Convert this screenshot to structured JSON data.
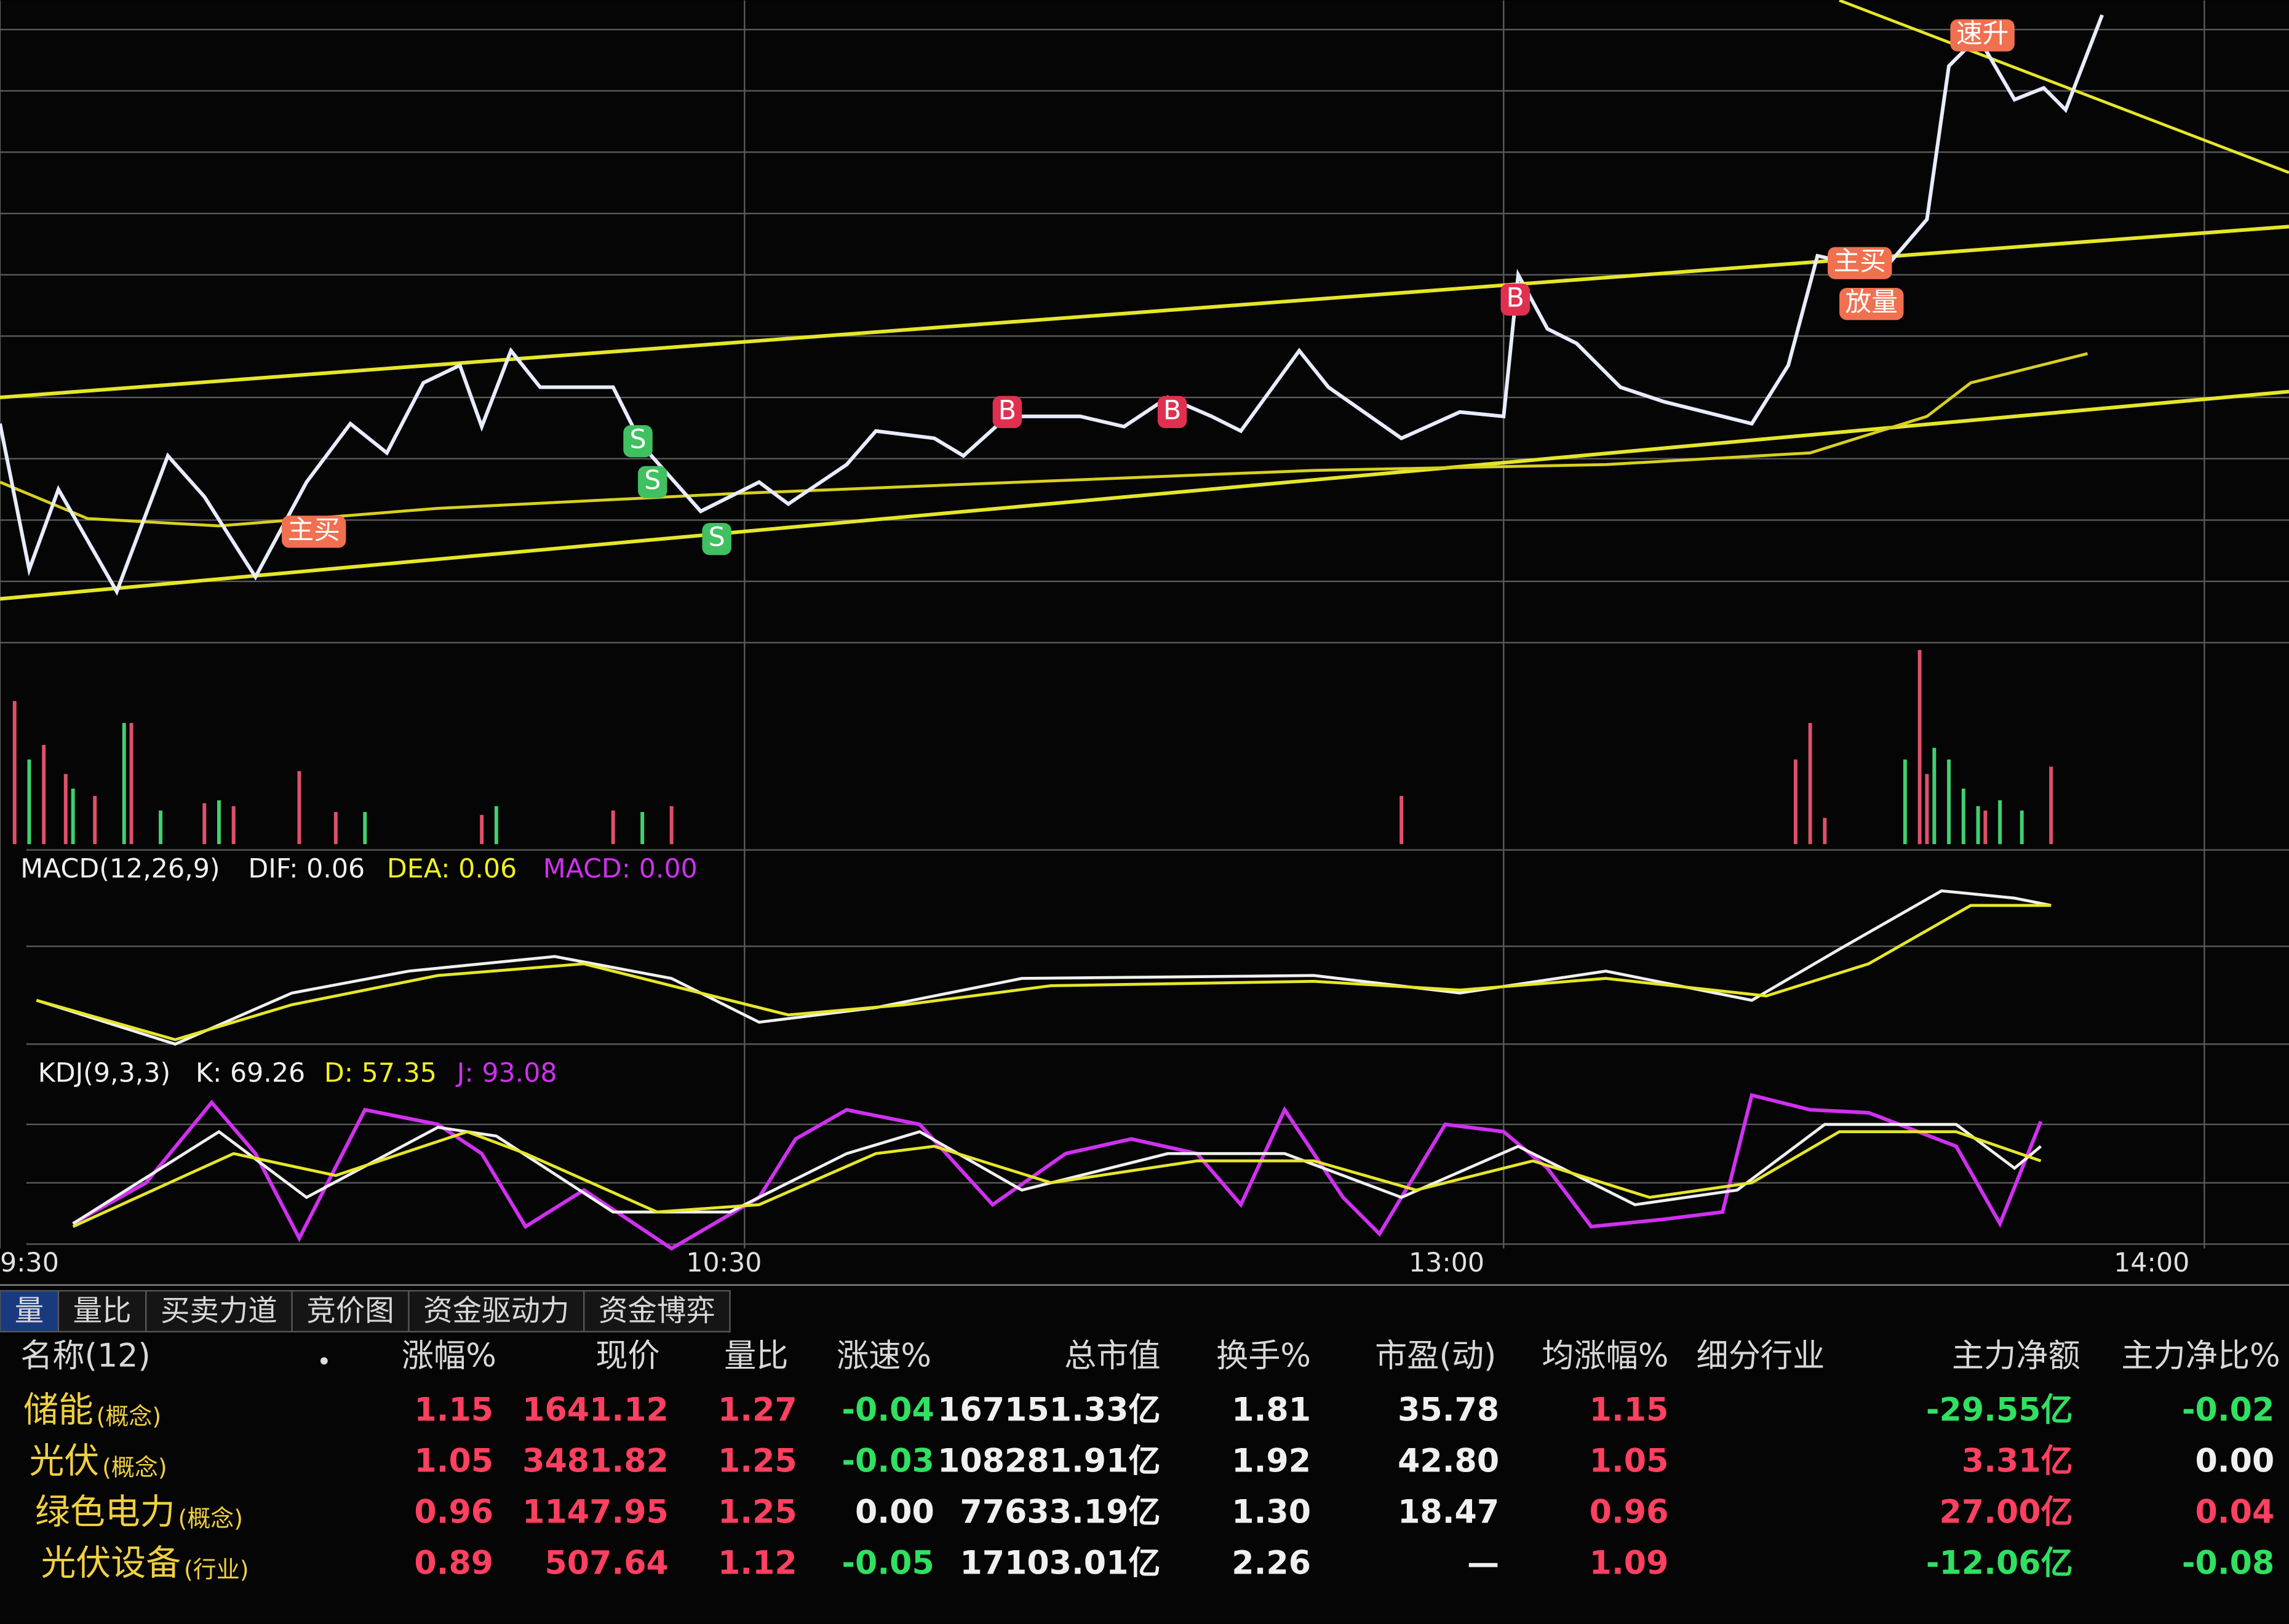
{
  "macd": {
    "label": "MACD(12,26,9)",
    "dif": "DIF: 0.06",
    "dea": "DEA: 0.06",
    "macd": "MACD: 0.00"
  },
  "kdj": {
    "label": "KDJ(9,3,3)",
    "k": "K: 69.26",
    "d": "D: 57.35",
    "j": "J: 93.08"
  },
  "time_axis": [
    "9:30",
    "10:30",
    "13:00",
    "14:00"
  ],
  "signals": [
    "主买",
    "S",
    "S",
    "S",
    "B",
    "B",
    "B",
    "主买",
    "放量",
    "速升"
  ],
  "tabs": [
    "量",
    "量比",
    "买卖力道",
    "竞价图",
    "资金驱动力",
    "资金博弈"
  ],
  "table": {
    "headers": [
      "名称(12)",
      "涨幅%",
      "现价",
      "量比",
      "涨速%",
      "总市值",
      "换手%",
      "市盈(动)",
      "均涨幅%",
      "细分行业",
      "主力净额",
      "主力净比%"
    ],
    "rows": [
      {
        "name": "储能",
        "tag": "(概念)",
        "cells": [
          "1.15",
          "1641.12",
          "1.27",
          "-0.04",
          "167151.33亿",
          "1.81",
          "35.78",
          "1.15",
          "-29.55亿",
          "-0.02"
        ]
      },
      {
        "name": "光伏",
        "tag": "(概念)",
        "cells": [
          "1.05",
          "3481.82",
          "1.25",
          "-0.03",
          "108281.91亿",
          "1.92",
          "42.80",
          "1.05",
          "3.31亿",
          "0.00"
        ]
      },
      {
        "name": "绿色电力",
        "tag": "(概念)",
        "cells": [
          "0.96",
          "1147.95",
          "1.25",
          "0.00",
          "77633.19亿",
          "1.30",
          "18.47",
          "0.96",
          "27.00亿",
          "0.04"
        ]
      },
      {
        "name": "光伏设备",
        "tag": "(行业)",
        "cells": [
          "0.89",
          "507.64",
          "1.12",
          "-0.05",
          "17103.01亿",
          "2.26",
          "—",
          "1.09",
          "-12.06亿",
          "-0.08"
        ]
      }
    ]
  }
}
